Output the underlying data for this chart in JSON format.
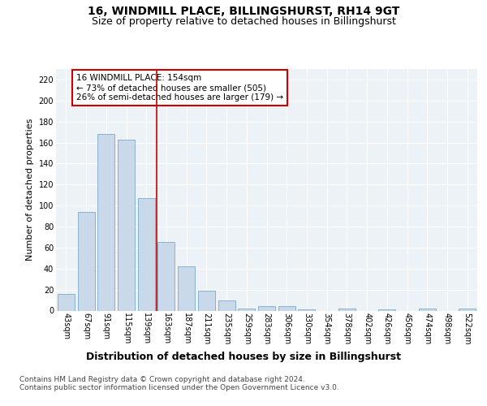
{
  "title": "16, WINDMILL PLACE, BILLINGSHURST, RH14 9GT",
  "subtitle": "Size of property relative to detached houses in Billingshurst",
  "xlabel": "Distribution of detached houses by size in Billingshurst",
  "ylabel": "Number of detached properties",
  "categories": [
    "43sqm",
    "67sqm",
    "91sqm",
    "115sqm",
    "139sqm",
    "163sqm",
    "187sqm",
    "211sqm",
    "235sqm",
    "259sqm",
    "283sqm",
    "306sqm",
    "330sqm",
    "354sqm",
    "378sqm",
    "402sqm",
    "426sqm",
    "450sqm",
    "474sqm",
    "498sqm",
    "522sqm"
  ],
  "values": [
    16,
    94,
    168,
    163,
    107,
    65,
    42,
    19,
    10,
    2,
    4,
    4,
    1,
    0,
    2,
    0,
    1,
    0,
    2,
    0,
    2
  ],
  "bar_color": "#c9d9ea",
  "bar_edge_color": "#7aaac8",
  "reference_line_x": 5,
  "reference_line_color": "#cc0000",
  "annotation_text": "16 WINDMILL PLACE: 154sqm\n← 73% of detached houses are smaller (505)\n26% of semi-detached houses are larger (179) →",
  "annotation_box_color": "#ffffff",
  "annotation_box_edge_color": "#cc0000",
  "ylim": [
    0,
    230
  ],
  "yticks": [
    0,
    20,
    40,
    60,
    80,
    100,
    120,
    140,
    160,
    180,
    200,
    220
  ],
  "footer_text": "Contains HM Land Registry data © Crown copyright and database right 2024.\nContains public sector information licensed under the Open Government Licence v3.0.",
  "bg_color": "#edf2f7",
  "grid_color": "#ffffff",
  "title_fontsize": 10,
  "subtitle_fontsize": 9,
  "tick_fontsize": 7,
  "ylabel_fontsize": 8,
  "xlabel_fontsize": 9,
  "footer_fontsize": 6.5
}
